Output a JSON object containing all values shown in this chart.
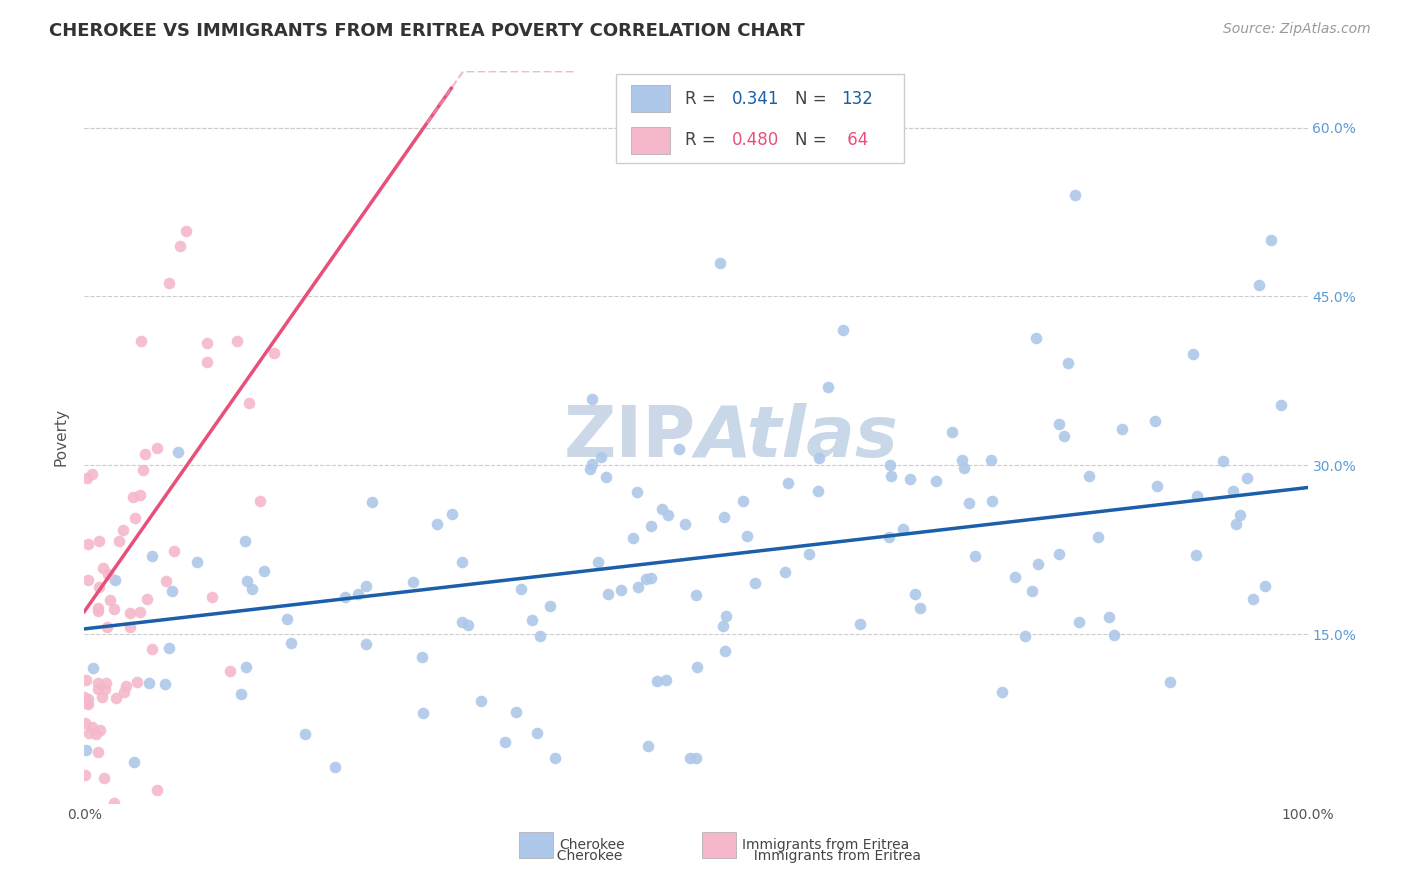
{
  "title": "CHEROKEE VS IMMIGRANTS FROM ERITREA POVERTY CORRELATION CHART",
  "source": "Source: ZipAtlas.com",
  "ylabel": "Poverty",
  "watermark": "ZIPAtlas",
  "xlim": [
    0,
    1.0
  ],
  "ylim": [
    0,
    0.65
  ],
  "xtick_labels": [
    "0.0%",
    "100.0%"
  ],
  "ytick_labels_right": [
    "15.0%",
    "30.0%",
    "45.0%",
    "60.0%"
  ],
  "ytick_values_right": [
    0.15,
    0.3,
    0.45,
    0.6
  ],
  "cherokee_color": "#adc8e8",
  "eritrea_color": "#f5b8ca",
  "cherokee_line_color": "#1a5fa8",
  "eritrea_line_color": "#e8507a",
  "cherokee_R": 0.341,
  "cherokee_N": 132,
  "eritrea_R": 0.48,
  "eritrea_N": 64,
  "background_color": "#ffffff",
  "grid_color": "#cccccc",
  "title_fontsize": 13,
  "axis_label_fontsize": 11,
  "tick_fontsize": 10,
  "watermark_fontsize": 52,
  "watermark_color": "#ccd8e8",
  "source_fontsize": 10,
  "legend_color_blue": "#1a5fa8",
  "legend_color_pink": "#e8507a"
}
